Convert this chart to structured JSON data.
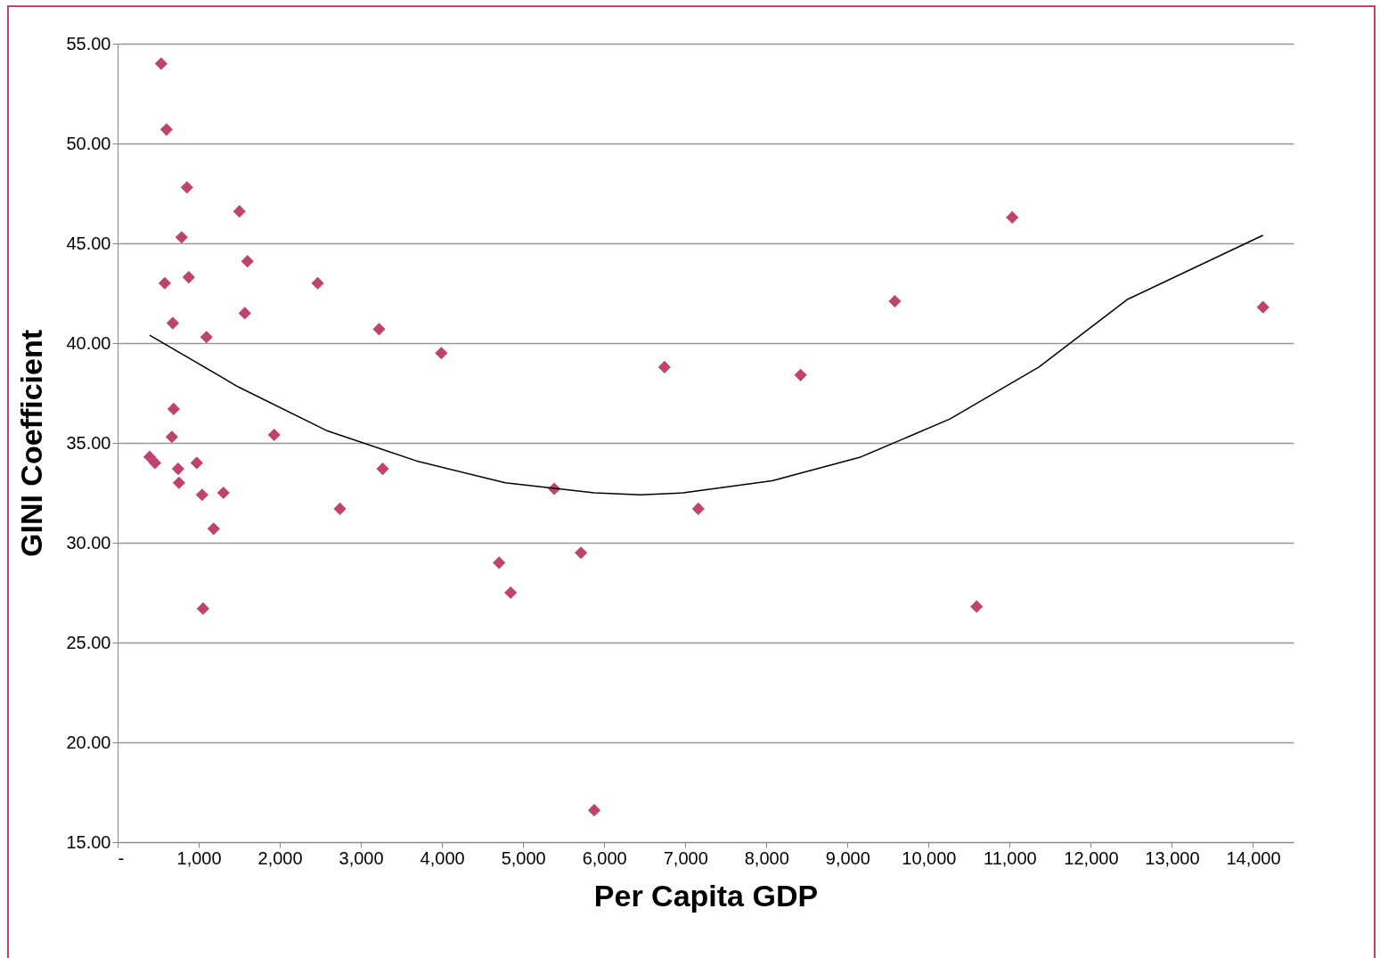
{
  "chart_data": {
    "type": "scatter",
    "xlabel": "Per Capita GDP",
    "ylabel": "GINI Coefficient",
    "xlim": [
      0,
      14500
    ],
    "ylim": [
      15,
      55
    ],
    "xticks": [
      {
        "value": 0,
        "label": "-"
      },
      {
        "value": 1000,
        "label": "1,000"
      },
      {
        "value": 2000,
        "label": "2,000"
      },
      {
        "value": 3000,
        "label": "3,000"
      },
      {
        "value": 4000,
        "label": "4,000"
      },
      {
        "value": 5000,
        "label": "5,000"
      },
      {
        "value": 6000,
        "label": "6,000"
      },
      {
        "value": 7000,
        "label": "7,000"
      },
      {
        "value": 8000,
        "label": "8,000"
      },
      {
        "value": 9000,
        "label": "9,000"
      },
      {
        "value": 10000,
        "label": "10,000"
      },
      {
        "value": 11000,
        "label": "11,000"
      },
      {
        "value": 12000,
        "label": "12,000"
      },
      {
        "value": 13000,
        "label": "13,000"
      },
      {
        "value": 14000,
        "label": "14,000"
      }
    ],
    "yticks": [
      {
        "value": 15,
        "label": "15.00"
      },
      {
        "value": 20,
        "label": "20.00"
      },
      {
        "value": 25,
        "label": "25.00"
      },
      {
        "value": 30,
        "label": "30.00"
      },
      {
        "value": 35,
        "label": "35.00"
      },
      {
        "value": 40,
        "label": "40.00"
      },
      {
        "value": 45,
        "label": "45.00"
      },
      {
        "value": 50,
        "label": "50.00"
      },
      {
        "value": 55,
        "label": "55.00"
      }
    ],
    "grid": "y",
    "marker": "diamond",
    "series": [
      {
        "color": "#c0426e",
        "x": [
          537,
          603,
          855,
          789,
          1502,
          1601,
          581,
          877,
          680,
          1568,
          1096,
          2467,
          3224,
          3991,
          691,
          669,
          1930,
          395,
          461,
          746,
          757,
          976,
          1042,
          1305,
          1184,
          1053,
          2741,
          3268,
          4704,
          4846,
          5384,
          5713,
          5877,
          6743,
          7160,
          8421,
          9583,
          10592,
          11031,
          14123
        ],
        "values": [
          54.0,
          50.7,
          47.8,
          45.3,
          46.6,
          44.1,
          43.0,
          43.3,
          41.0,
          41.5,
          40.3,
          43.0,
          40.7,
          39.5,
          36.7,
          35.3,
          35.4,
          34.3,
          34.0,
          33.7,
          33.0,
          34.0,
          32.4,
          32.5,
          30.7,
          26.7,
          31.7,
          33.7,
          29.0,
          27.5,
          32.7,
          29.5,
          16.6,
          38.8,
          31.7,
          38.4,
          42.1,
          26.8,
          46.3,
          41.8
        ]
      },
      {
        "type": "line",
        "color": "#000000",
        "marker": "none",
        "x": [
          395,
          1491,
          2588,
          3684,
          4781,
          5877,
          6447,
          6974,
          8070,
          9167,
          10263,
          11360,
          12456,
          14123
        ],
        "values": [
          40.4,
          37.8,
          35.6,
          34.1,
          33.0,
          32.5,
          32.4,
          32.5,
          33.1,
          34.3,
          36.2,
          38.8,
          42.2,
          45.4
        ]
      }
    ]
  }
}
